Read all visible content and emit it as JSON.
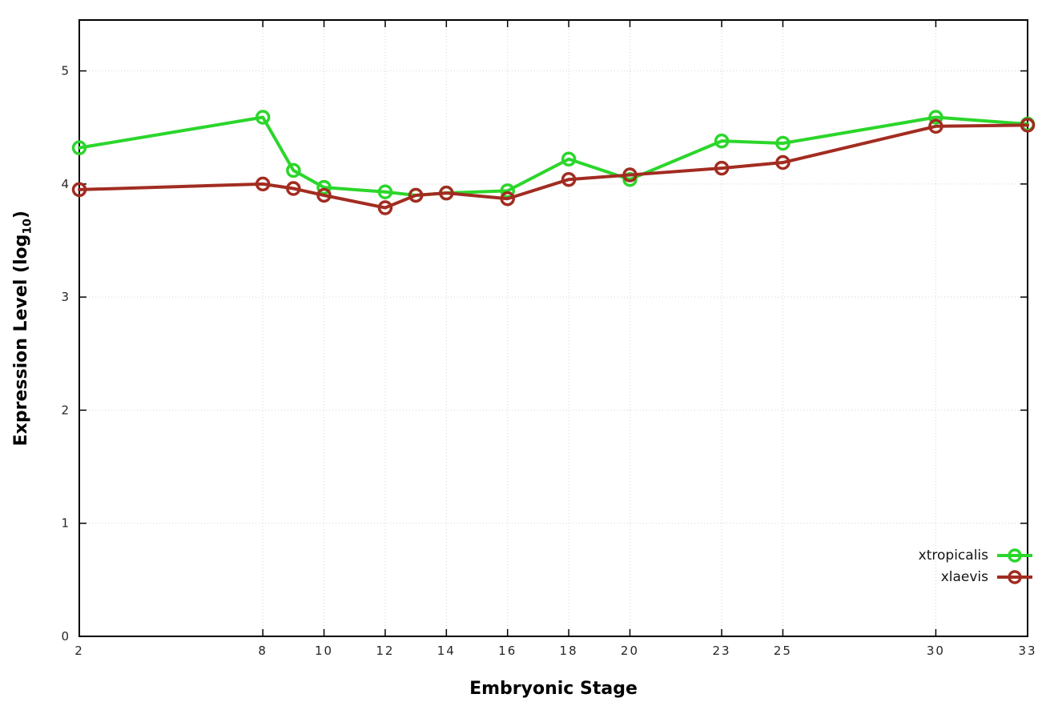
{
  "chart_data": {
    "type": "line",
    "title": "",
    "xlabel": "Embryonic Stage",
    "ylabel": "Expression Level (log10)",
    "ylabel_prefix": "Expression Level (log",
    "ylabel_sub": "10",
    "ylabel_suffix": ")",
    "xlim": [
      2,
      33
    ],
    "ylim": [
      0,
      5.45
    ],
    "xticks": [
      2,
      8,
      10,
      12,
      14,
      16,
      18,
      20,
      23,
      25,
      30,
      33
    ],
    "yticks": [
      0,
      1,
      2,
      3,
      4,
      5
    ],
    "grid": true,
    "legend_position": "bottom-right-inside",
    "x": [
      2,
      8,
      9,
      10,
      12,
      13,
      14,
      16,
      18,
      20,
      23,
      25,
      30,
      33
    ],
    "series": [
      {
        "name": "xtropicalis",
        "color": "#2bd62b",
        "values": [
          4.32,
          4.59,
          4.12,
          3.97,
          3.93,
          3.9,
          3.92,
          3.94,
          4.22,
          4.04,
          4.38,
          4.36,
          4.59,
          4.53
        ]
      },
      {
        "name": "xlaevis",
        "color": "#a22c21",
        "values": [
          3.95,
          4.0,
          3.96,
          3.9,
          3.79,
          3.9,
          3.92,
          3.87,
          4.04,
          4.08,
          4.14,
          4.19,
          4.51,
          4.52
        ]
      }
    ]
  }
}
